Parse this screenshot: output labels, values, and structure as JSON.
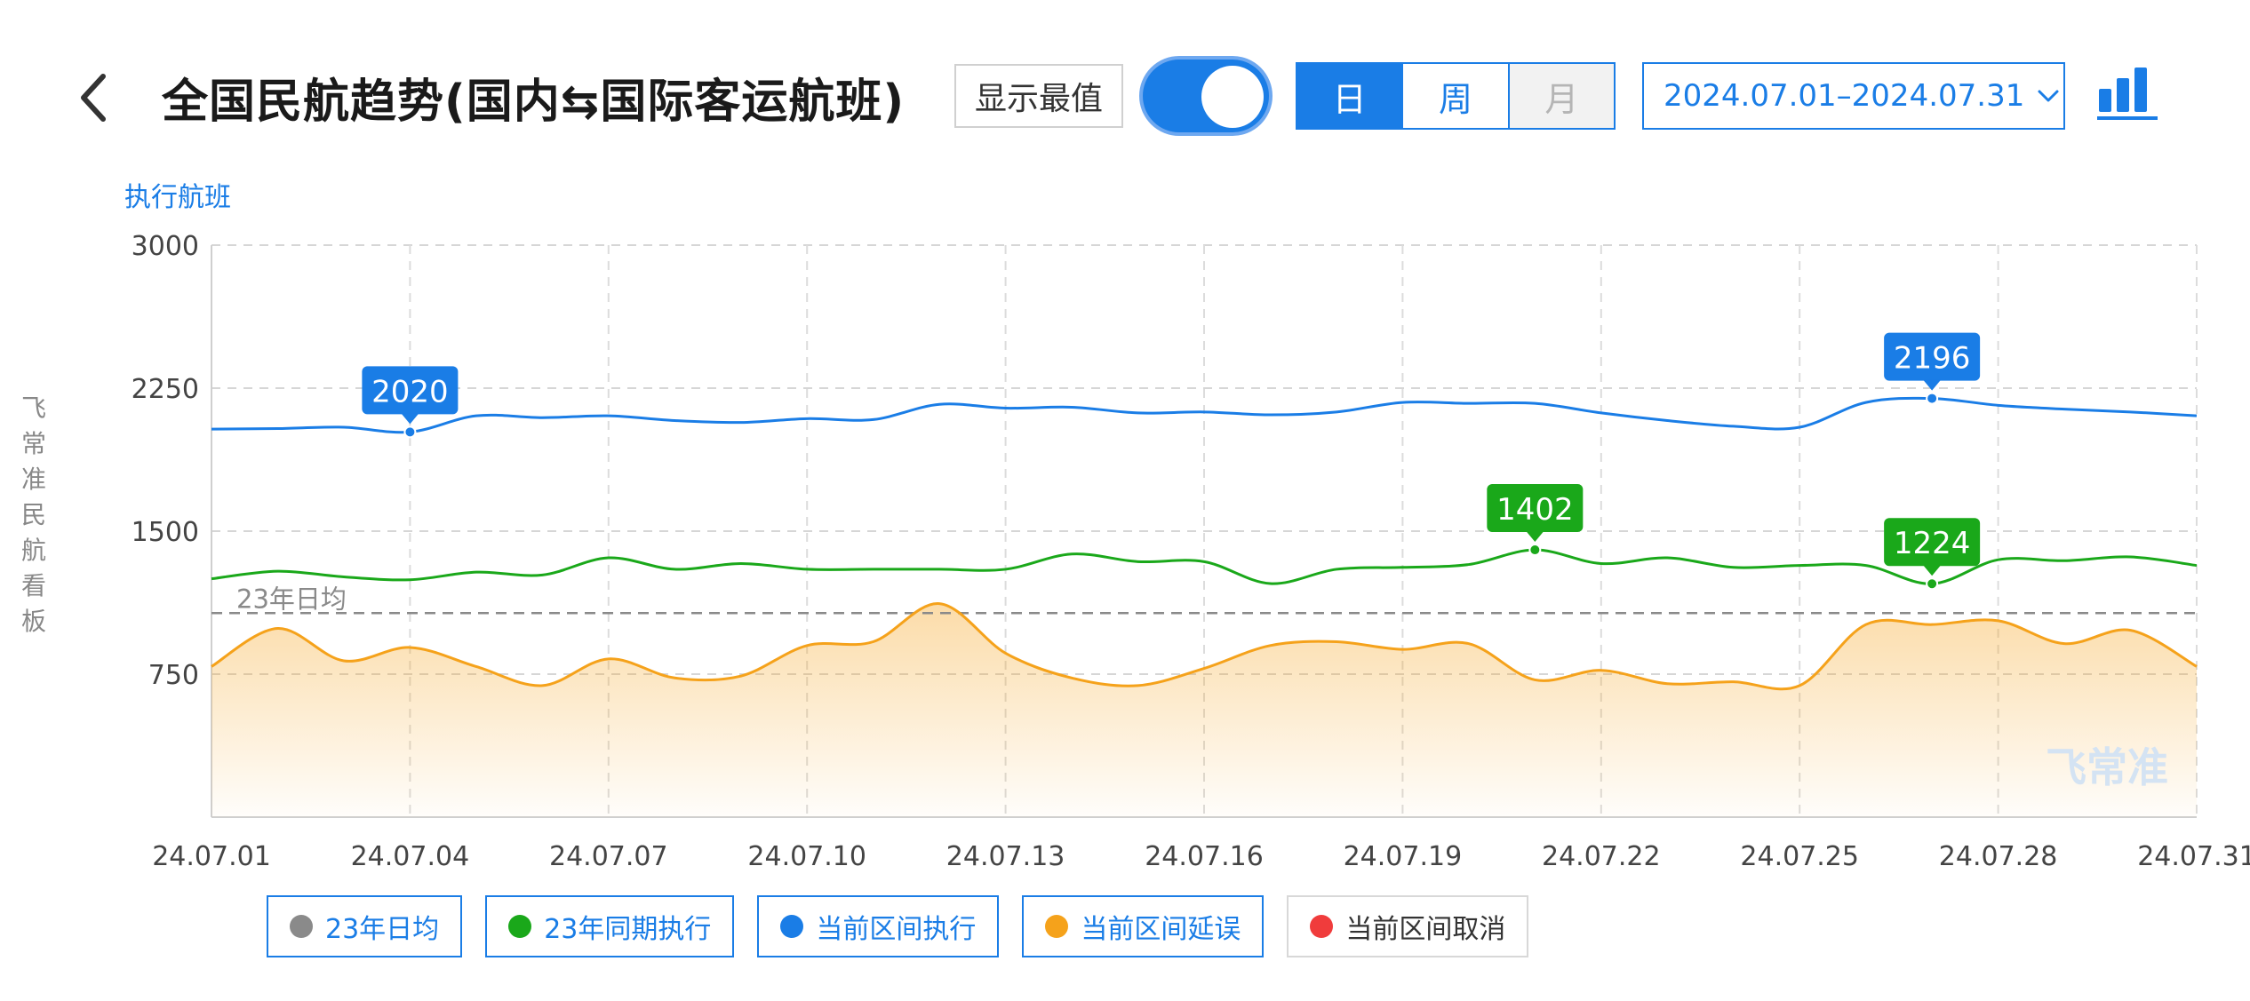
{
  "header": {
    "title": "全国民航趋势(国内⇆国际客运航班)",
    "show_extremes_label": "显示最值",
    "toggle_on": true,
    "granularity_tabs": [
      {
        "label": "日",
        "state": "selected"
      },
      {
        "label": "周",
        "state": "normal"
      },
      {
        "label": "月",
        "state": "disabled"
      }
    ],
    "date_range": "2024.07.01–2024.07.31"
  },
  "side_label": "飞常准民航看板",
  "colors": {
    "accent": "#1a7de6",
    "series_2023_avg": "#8a8a8a",
    "series_2023_same_period": "#1aa81a",
    "series_current_exec": "#1a7de6",
    "series_current_delay": "#f5a21b",
    "series_current_cancel": "#f03c3c"
  },
  "icons": {
    "back": "chevron-left-icon",
    "chart_switch": "bar-chart-icon",
    "date_dropdown": "chevron-down-icon"
  },
  "legend": [
    {
      "label": "23年日均",
      "color": "#8a8a8a",
      "active": true
    },
    {
      "label": "23年同期执行",
      "color": "#1aa81a",
      "active": true
    },
    {
      "label": "当前区间执行",
      "color": "#1a7de6",
      "active": true
    },
    {
      "label": "当前区间延误",
      "color": "#f5a21b",
      "active": true
    },
    {
      "label": "当前区间取消",
      "color": "#f03c3c",
      "active": false
    }
  ],
  "chart_data": {
    "type": "line",
    "ylabel": "执行航班",
    "ylim": [
      0,
      3000
    ],
    "yticks": [
      750,
      1500,
      2250,
      3000
    ],
    "x_tick_labels": [
      "24.07.01",
      "24.07.04",
      "24.07.07",
      "24.07.10",
      "24.07.13",
      "24.07.16",
      "24.07.19",
      "24.07.22",
      "24.07.25",
      "24.07.28",
      "24.07.31"
    ],
    "x": [
      "24.07.01",
      "24.07.02",
      "24.07.03",
      "24.07.04",
      "24.07.05",
      "24.07.06",
      "24.07.07",
      "24.07.08",
      "24.07.09",
      "24.07.10",
      "24.07.11",
      "24.07.12",
      "24.07.13",
      "24.07.14",
      "24.07.15",
      "24.07.16",
      "24.07.17",
      "24.07.18",
      "24.07.19",
      "24.07.20",
      "24.07.21",
      "24.07.22",
      "24.07.23",
      "24.07.24",
      "24.07.25",
      "24.07.26",
      "24.07.27",
      "24.07.28",
      "24.07.29",
      "24.07.30",
      "24.07.31"
    ],
    "reference_line": {
      "label": "23年日均",
      "value": 1070
    },
    "series": [
      {
        "name": "当前区间执行",
        "key": "exec",
        "values": [
          2035,
          2038,
          2045,
          2020,
          2105,
          2095,
          2105,
          2080,
          2070,
          2090,
          2085,
          2165,
          2145,
          2150,
          2120,
          2125,
          2110,
          2125,
          2175,
          2170,
          2170,
          2120,
          2080,
          2050,
          2045,
          2175,
          2196,
          2160,
          2140,
          2125,
          2105
        ]
      },
      {
        "name": "23年同期执行",
        "key": "same",
        "values": [
          1250,
          1290,
          1260,
          1245,
          1285,
          1270,
          1360,
          1300,
          1330,
          1300,
          1300,
          1300,
          1300,
          1380,
          1340,
          1340,
          1225,
          1300,
          1310,
          1325,
          1402,
          1330,
          1360,
          1310,
          1320,
          1320,
          1224,
          1350,
          1345,
          1365,
          1320
        ]
      },
      {
        "name": "当前区间延误",
        "key": "delay",
        "values": [
          790,
          990,
          820,
          890,
          790,
          690,
          830,
          730,
          740,
          900,
          920,
          1120,
          860,
          730,
          690,
          780,
          900,
          920,
          880,
          910,
          720,
          770,
          700,
          710,
          690,
          1010,
          1010,
          1030,
          910,
          980,
          790
        ]
      }
    ],
    "annotations": [
      {
        "series": "exec",
        "x": "24.07.04",
        "value": 2020,
        "label": "2020"
      },
      {
        "series": "exec",
        "x": "24.07.27",
        "value": 2196,
        "label": "2196"
      },
      {
        "series": "same",
        "x": "24.07.21",
        "value": 1402,
        "label": "1402"
      },
      {
        "series": "same",
        "x": "24.07.27",
        "value": 1224,
        "label": "1224"
      }
    ],
    "watermark": "飞常准",
    "grid": true
  }
}
